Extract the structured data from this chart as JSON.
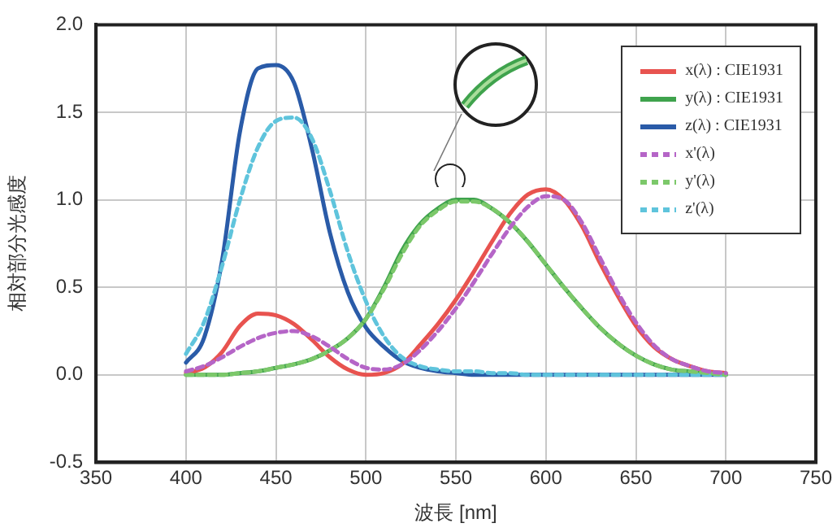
{
  "chart_data": {
    "type": "line",
    "xlabel": "波長 [nm]",
    "ylabel": "相対部分光感度",
    "x": [
      400,
      410,
      420,
      430,
      440,
      450,
      460,
      470,
      480,
      490,
      500,
      510,
      520,
      530,
      540,
      550,
      560,
      570,
      580,
      590,
      600,
      610,
      620,
      630,
      640,
      650,
      660,
      670,
      680,
      690,
      700
    ],
    "series": [
      {
        "name": "x(λ) : CIE1931",
        "color": "#e8534f",
        "line_style": "solid",
        "values": [
          0.01,
          0.04,
          0.13,
          0.28,
          0.35,
          0.34,
          0.29,
          0.2,
          0.1,
          0.03,
          0.0,
          0.01,
          0.06,
          0.17,
          0.29,
          0.43,
          0.59,
          0.76,
          0.92,
          1.03,
          1.06,
          1.0,
          0.85,
          0.64,
          0.45,
          0.28,
          0.16,
          0.09,
          0.05,
          0.02,
          0.01
        ]
      },
      {
        "name": "y(λ) : CIE1931",
        "color": "#3fa34d",
        "line_style": "solid",
        "values": [
          0.0,
          0.0,
          0.0,
          0.01,
          0.02,
          0.04,
          0.06,
          0.09,
          0.14,
          0.21,
          0.32,
          0.5,
          0.71,
          0.86,
          0.95,
          1.0,
          1.0,
          0.95,
          0.87,
          0.76,
          0.63,
          0.5,
          0.38,
          0.27,
          0.18,
          0.11,
          0.06,
          0.03,
          0.02,
          0.01,
          0.0
        ]
      },
      {
        "name": "z(λ) : CIE1931",
        "color": "#2a5ba8",
        "line_style": "solid",
        "values": [
          0.07,
          0.21,
          0.65,
          1.39,
          1.75,
          1.77,
          1.67,
          1.29,
          0.81,
          0.47,
          0.27,
          0.16,
          0.08,
          0.04,
          0.02,
          0.01,
          0.0,
          0.0,
          0.0,
          0.0,
          0.0,
          0.0,
          0.0,
          0.0,
          0.0,
          0.0,
          0.0,
          0.0,
          0.0,
          0.0,
          0.0
        ]
      },
      {
        "name": "x'(λ)",
        "color": "#b565c7",
        "line_style": "dashed",
        "values": [
          0.02,
          0.05,
          0.1,
          0.16,
          0.21,
          0.24,
          0.25,
          0.22,
          0.16,
          0.09,
          0.04,
          0.03,
          0.06,
          0.14,
          0.25,
          0.38,
          0.53,
          0.69,
          0.84,
          0.96,
          1.02,
          1.0,
          0.87,
          0.67,
          0.47,
          0.3,
          0.17,
          0.09,
          0.05,
          0.02,
          0.01
        ]
      },
      {
        "name": "y'(λ)",
        "color": "#7cc86a",
        "line_style": "dashed",
        "values": [
          0.0,
          0.0,
          0.0,
          0.01,
          0.02,
          0.04,
          0.06,
          0.09,
          0.14,
          0.21,
          0.32,
          0.49,
          0.69,
          0.85,
          0.94,
          0.99,
          0.99,
          0.95,
          0.87,
          0.76,
          0.63,
          0.5,
          0.38,
          0.27,
          0.18,
          0.11,
          0.06,
          0.03,
          0.02,
          0.01,
          0.0
        ]
      },
      {
        "name": "z'(λ)",
        "color": "#5fc4dc",
        "line_style": "dashed",
        "values": [
          0.12,
          0.3,
          0.62,
          1.0,
          1.3,
          1.45,
          1.47,
          1.35,
          1.05,
          0.7,
          0.42,
          0.22,
          0.1,
          0.05,
          0.03,
          0.02,
          0.02,
          0.01,
          0.01,
          0.0,
          0.0,
          0.0,
          0.0,
          0.0,
          0.0,
          0.0,
          0.0,
          0.0,
          0.0,
          0.0,
          0.0
        ]
      }
    ],
    "xlim": [
      350,
      750
    ],
    "xticks": [
      350,
      400,
      450,
      500,
      550,
      600,
      650,
      700,
      750
    ],
    "ylim": [
      -0.5,
      2.0
    ],
    "yticks": [
      {
        "value": -0.5,
        "label": "-0.5"
      },
      {
        "value": 0,
        "label": "0.0"
      },
      {
        "value": 0.5,
        "label": "0.5"
      },
      {
        "value": 1,
        "label": "1.0"
      },
      {
        "value": 1.5,
        "label": "1.5"
      },
      {
        "value": 2,
        "label": "2.0"
      }
    ],
    "grid": true,
    "legend": "top right",
    "marker": "none"
  }
}
